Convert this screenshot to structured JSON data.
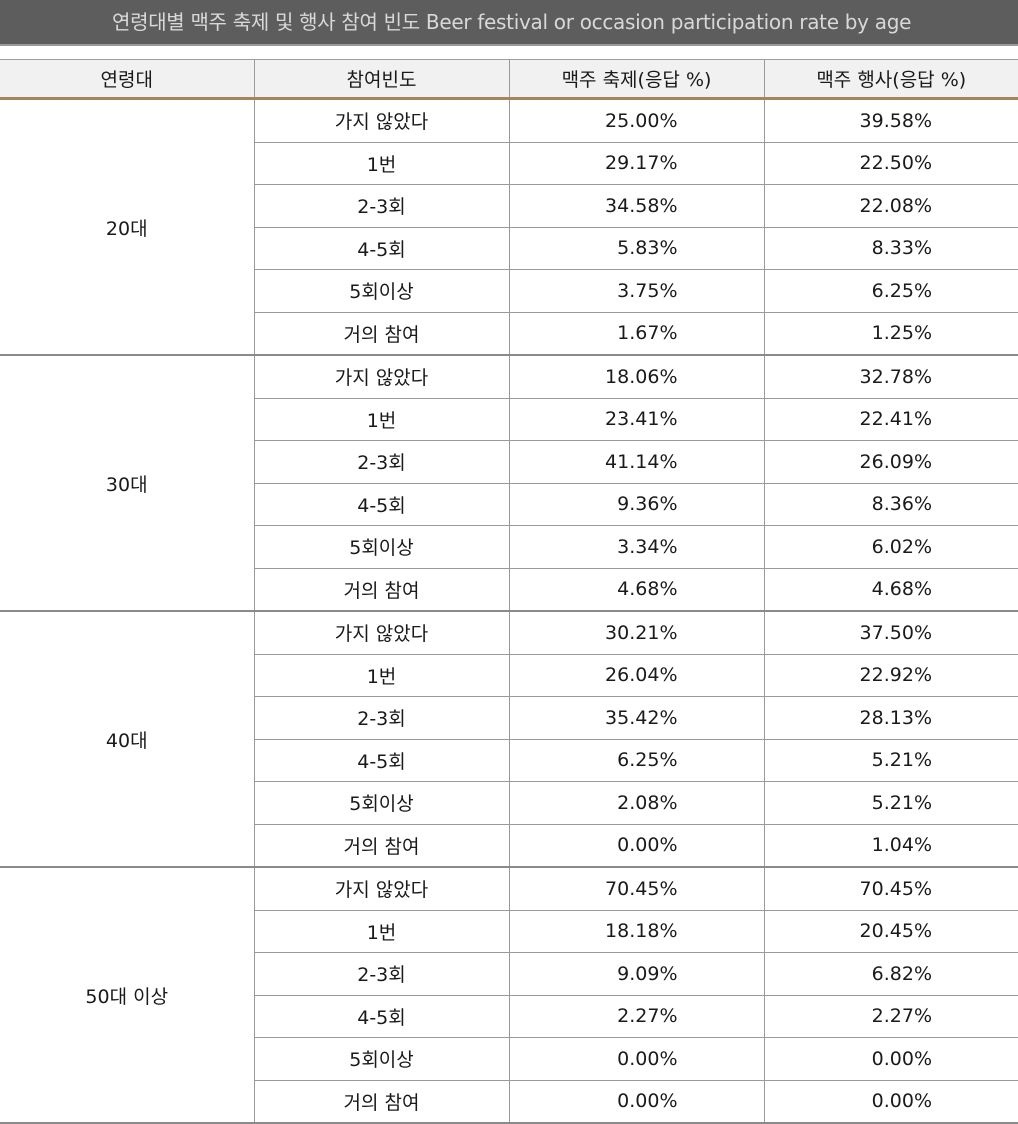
{
  "title": "연령대별 맥주 축제 및 행사 참여 빈도  Beer festival or occasion participation rate by age",
  "headers": [
    "연령대",
    "참여빈도",
    "맥주 축제(응답 %)",
    "맥주 행사(응답 %)"
  ],
  "groups": [
    {
      "age": "20대",
      "rows": [
        {
          "freq": "가지 않았다",
          "festival": "25.00%",
          "event": "39.58%"
        },
        {
          "freq": "1번",
          "festival": "29.17%",
          "event": "22.50%"
        },
        {
          "freq": "2-3회",
          "festival": "34.58%",
          "event": "22.08%"
        },
        {
          "freq": "4-5회",
          "festival": "5.83%",
          "event": "8.33%"
        },
        {
          "freq": "5회이상",
          "festival": "3.75%",
          "event": "6.25%"
        },
        {
          "freq": "거의 참여",
          "festival": "1.67%",
          "event": "1.25%"
        }
      ]
    },
    {
      "age": "30대",
      "rows": [
        {
          "freq": "가지 않았다",
          "festival": "18.06%",
          "event": "32.78%"
        },
        {
          "freq": "1번",
          "festival": "23.41%",
          "event": "22.41%"
        },
        {
          "freq": "2-3회",
          "festival": "41.14%",
          "event": "26.09%"
        },
        {
          "freq": "4-5회",
          "festival": "9.36%",
          "event": "8.36%"
        },
        {
          "freq": "5회이상",
          "festival": "3.34%",
          "event": "6.02%"
        },
        {
          "freq": "거의 참여",
          "festival": "4.68%",
          "event": "4.68%"
        }
      ]
    },
    {
      "age": "40대",
      "rows": [
        {
          "freq": "가지 않았다",
          "festival": "30.21%",
          "event": "37.50%"
        },
        {
          "freq": "1번",
          "festival": "26.04%",
          "event": "22.92%"
        },
        {
          "freq": "2-3회",
          "festival": "35.42%",
          "event": "28.13%"
        },
        {
          "freq": "4-5회",
          "festival": "6.25%",
          "event": "5.21%"
        },
        {
          "freq": "5회이상",
          "festival": "2.08%",
          "event": "5.21%"
        },
        {
          "freq": "거의 참여",
          "festival": "0.00%",
          "event": "1.04%"
        }
      ]
    },
    {
      "age": "50대 이상",
      "rows": [
        {
          "freq": "가지 않았다",
          "festival": "70.45%",
          "event": "70.45%"
        },
        {
          "freq": "1번",
          "festival": "18.18%",
          "event": "20.45%"
        },
        {
          "freq": "2-3회",
          "festival": "9.09%",
          "event": "6.82%"
        },
        {
          "freq": "4-5회",
          "festival": "2.27%",
          "event": "2.27%"
        },
        {
          "freq": "5회이상",
          "festival": "0.00%",
          "event": "0.00%"
        },
        {
          "freq": "거의 참여",
          "festival": "0.00%",
          "event": "0.00%"
        }
      ]
    }
  ],
  "colors": {
    "title_bar": "#5d5d5d",
    "title_text": "#d8d8d8",
    "header_bg": "#f1f1f1",
    "header_rule": "#a6855b",
    "grid": "#9a9a9a"
  }
}
